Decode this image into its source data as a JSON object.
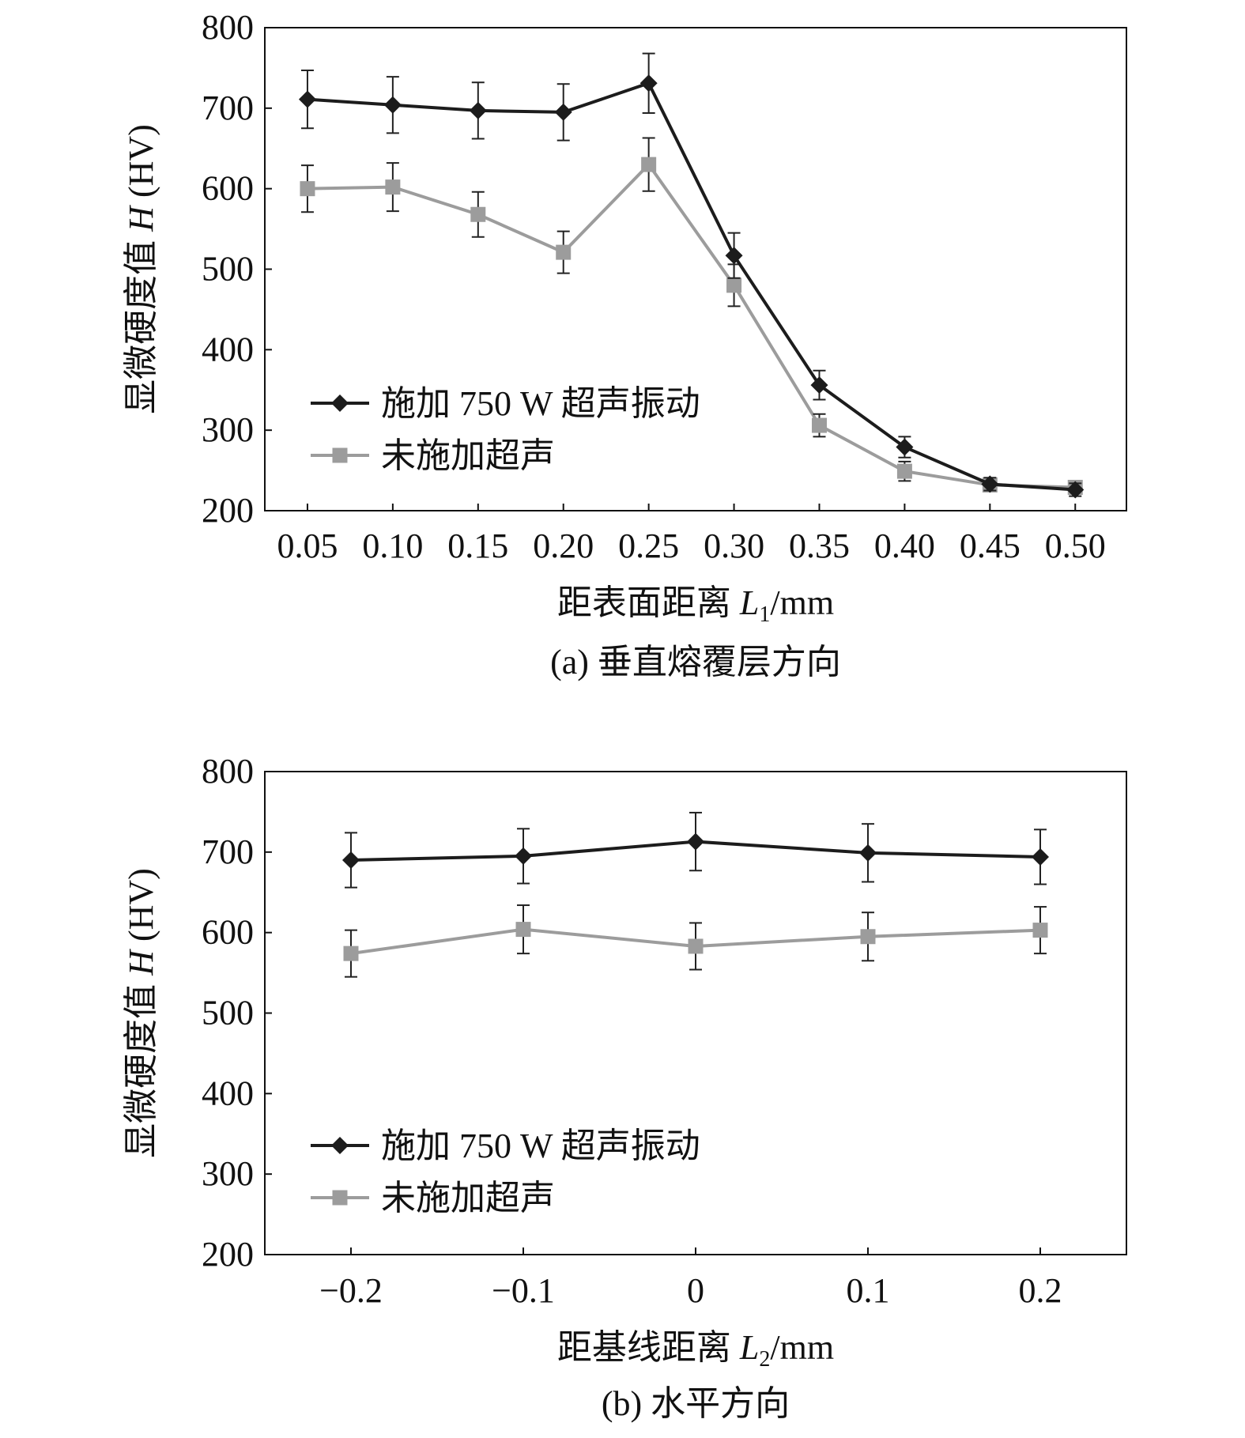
{
  "chart_data": [
    {
      "type": "line",
      "x_kind": "category",
      "categories": [
        "0.05",
        "0.10",
        "0.15",
        "0.20",
        "0.25",
        "0.30",
        "0.35",
        "0.40",
        "0.45",
        "0.50"
      ],
      "series": [
        {
          "name": "施加 750 W 超声振动",
          "marker": "diamond",
          "color": "#1c1c1c",
          "values": [
            711,
            704,
            697,
            695,
            731,
            517,
            356,
            279,
            233,
            226
          ],
          "error": [
            36,
            35,
            35,
            35,
            37,
            28,
            18,
            13,
            8,
            8
          ]
        },
        {
          "name": "未施加超声",
          "marker": "square",
          "color": "#9c9c9c",
          "values": [
            600,
            602,
            568,
            521,
            630,
            480,
            306,
            249,
            232,
            229
          ],
          "error": [
            29,
            30,
            28,
            26,
            33,
            26,
            14,
            12,
            8,
            7
          ]
        }
      ],
      "ylim": [
        200,
        800
      ],
      "yticks": [
        "200",
        "300",
        "400",
        "500",
        "600",
        "700",
        "800"
      ],
      "ylabel": {
        "main": "显微硬度值 ",
        "var": "H",
        "unit": " (HV)"
      },
      "xlabel": {
        "main": "距表面距离 ",
        "var": "L",
        "sub": "1",
        "unit": "/mm"
      },
      "caption": "(a) 垂直熔覆层方向",
      "legend_position": "center-left"
    },
    {
      "type": "line",
      "x_kind": "numeric",
      "x": [
        -0.2,
        -0.1,
        0,
        0.1,
        0.2
      ],
      "xlim": [
        -0.25,
        0.25
      ],
      "xticks": [
        "−0.2",
        "−0.1",
        "0",
        "0.1",
        "0.2"
      ],
      "series": [
        {
          "name": "施加 750 W 超声振动",
          "marker": "diamond",
          "color": "#1c1c1c",
          "values": [
            690,
            695,
            713,
            699,
            694
          ],
          "error": [
            34,
            34,
            36,
            36,
            34
          ]
        },
        {
          "name": "未施加超声",
          "marker": "square",
          "color": "#9c9c9c",
          "values": [
            574,
            604,
            583,
            595,
            603
          ],
          "error": [
            29,
            30,
            29,
            30,
            29
          ]
        }
      ],
      "ylim": [
        200,
        800
      ],
      "yticks": [
        "200",
        "300",
        "400",
        "500",
        "600",
        "700",
        "800"
      ],
      "ylabel": {
        "main": "显微硬度值 ",
        "var": "H",
        "unit": " (HV)"
      },
      "xlabel": {
        "main": "距基线距离 ",
        "var": "L",
        "sub": "2",
        "unit": "/mm"
      },
      "caption": "(b) 水平方向",
      "legend_position": "center-left"
    }
  ]
}
